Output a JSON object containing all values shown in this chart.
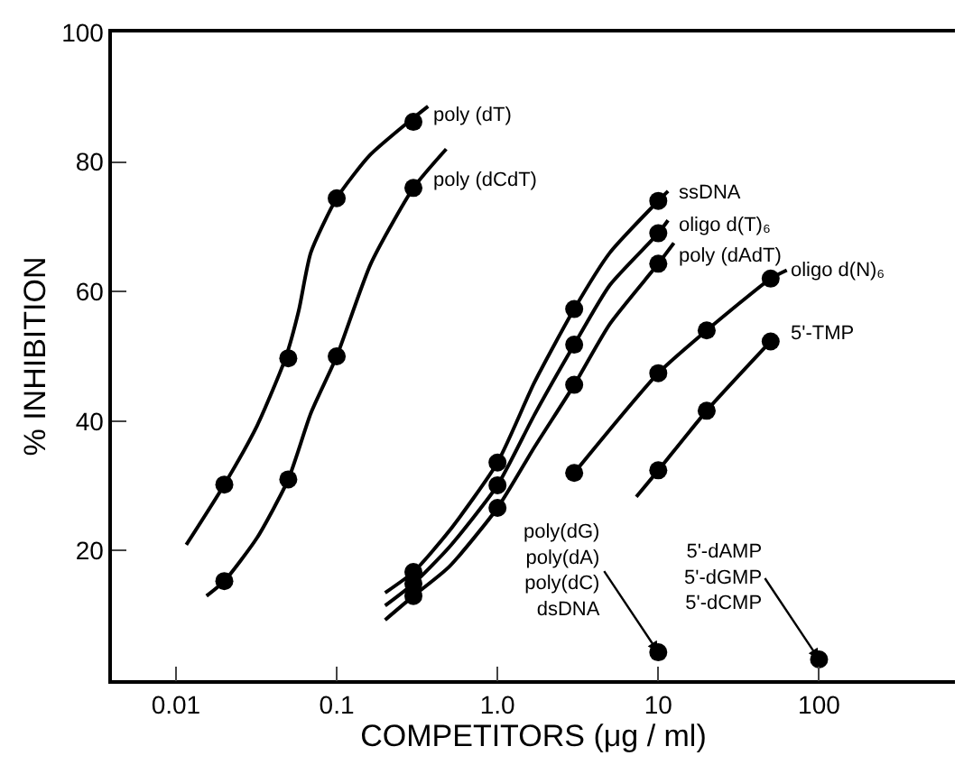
{
  "chart_data": {
    "type": "line",
    "xlabel": "COMPETITORS (μg / ml)",
    "ylabel": "% INHIBITION",
    "log": "x",
    "legend": false,
    "marker": "circle",
    "line_style": "solid",
    "xlim": [
      0.004,
      700
    ],
    "xticks": [
      0.01,
      0.1,
      {
        "value": 1,
        "label": "1.0"
      },
      10,
      100
    ],
    "ylim": [
      0,
      100
    ],
    "yticks": [
      20,
      40,
      60,
      80,
      100
    ],
    "series": [
      {
        "marker": "none",
        "color": "#000000",
        "x": [
          0.0116,
          0.02,
          0.032,
          0.048,
          0.058,
          0.069,
          0.1,
          0.16,
          0.28,
          0.37
        ],
        "values": [
          20.9,
          30.2,
          39.3,
          49.7,
          57,
          66,
          74.4,
          81,
          86.2,
          88.6
        ]
      },
      {
        "type": "scatter",
        "name": "poly (dT)",
        "color": "#000000",
        "x": [
          0.02,
          0.05,
          0.1,
          0.3
        ],
        "values": [
          30.2,
          49.7,
          74.4,
          86.2
        ]
      },
      {
        "marker": "none",
        "color": "#000000",
        "x": [
          0.0155,
          0.02,
          0.032,
          0.05,
          0.069,
          0.1,
          0.163,
          0.3,
          0.48
        ],
        "values": [
          13,
          15.3,
          22,
          31,
          41.2,
          50,
          64.3,
          76,
          82
        ]
      },
      {
        "type": "scatter",
        "name": "poly (dCdT)",
        "color": "#000000",
        "x": [
          0.02,
          0.05,
          0.1,
          0.3
        ],
        "values": [
          15.3,
          31,
          50,
          76
        ]
      },
      {
        "marker": "none",
        "color": "#000000",
        "x": [
          0.2,
          0.3,
          0.5,
          1,
          1.7,
          3,
          5,
          10,
          11.5
        ],
        "values": [
          13.5,
          16.7,
          23,
          33.6,
          46,
          57.3,
          66,
          74,
          75.5
        ]
      },
      {
        "type": "scatter",
        "name": "ssDNA",
        "color": "#000000",
        "x": [
          0.3,
          1,
          3,
          10
        ],
        "values": [
          16.7,
          33.6,
          57.3,
          74
        ]
      },
      {
        "marker": "none",
        "color": "#000000",
        "x": [
          0.2,
          0.3,
          0.5,
          1,
          1.7,
          3,
          5,
          10,
          11.5
        ],
        "values": [
          11.5,
          14.9,
          20.5,
          30.1,
          41,
          51.8,
          61,
          69,
          71
        ]
      },
      {
        "type": "scatter",
        "name": "oligo d(T)₆",
        "color": "#000000",
        "x": [
          0.3,
          1,
          3,
          10
        ],
        "values": [
          14.9,
          30.1,
          51.8,
          69
        ]
      },
      {
        "marker": "none",
        "color": "#000000",
        "x": [
          0.2,
          0.3,
          0.5,
          1,
          1.7,
          3,
          5,
          10,
          12.5
        ],
        "values": [
          9.3,
          13,
          17.5,
          26.6,
          36,
          45.6,
          55,
          64.3,
          67.5
        ]
      },
      {
        "type": "scatter",
        "name": "poly (dAdT)",
        "color": "#000000",
        "x": [
          0.3,
          1,
          3,
          10
        ],
        "values": [
          13,
          26.6,
          45.6,
          64.3
        ]
      },
      {
        "marker": "none",
        "color": "#000000",
        "x": [
          3,
          10,
          20,
          50,
          63
        ],
        "values": [
          32,
          47.4,
          54,
          62,
          63.3
        ]
      },
      {
        "type": "scatter",
        "name": "oligo d(N)₆",
        "color": "#000000",
        "x": [
          3,
          10,
          20,
          50
        ],
        "values": [
          32,
          47.4,
          54,
          62
        ]
      },
      {
        "marker": "none",
        "color": "#000000",
        "x": [
          7.3,
          10,
          20,
          50
        ],
        "values": [
          28.3,
          32.4,
          41.6,
          52.3
        ]
      },
      {
        "type": "scatter",
        "name": "5'-TMP",
        "color": "#000000",
        "x": [
          10,
          20,
          50
        ],
        "values": [
          32.4,
          41.6,
          52.3
        ]
      },
      {
        "type": "scatter",
        "color": "#000000",
        "x": [
          10,
          100
        ],
        "values": [
          4.3,
          3.2
        ]
      }
    ],
    "annotations": [
      {
        "text": "poly(dG)\npoly(dA)\npoly(dC)\ndsDNA",
        "x": 10,
        "y": 4.3
      },
      {
        "text": "5'-dAMP\n5'-dGMP\n5'-dCMP",
        "x": 100,
        "y": 3.2
      }
    ]
  }
}
